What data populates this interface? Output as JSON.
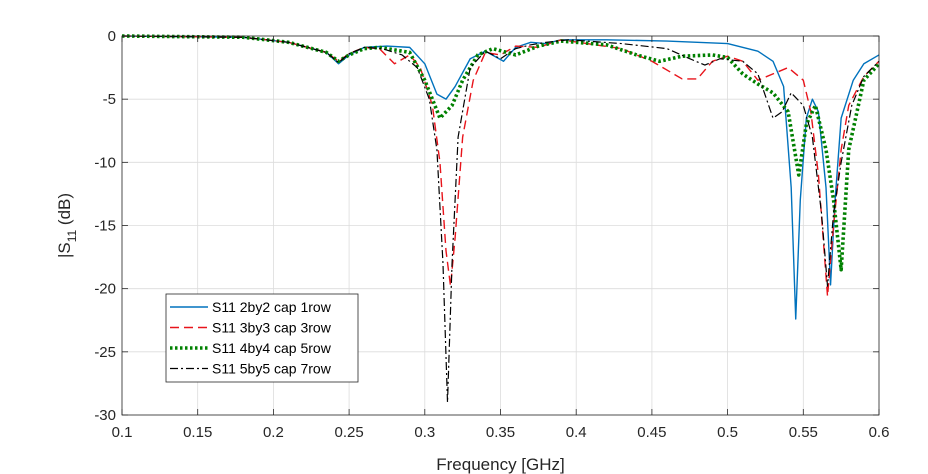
{
  "chart_data": {
    "type": "line",
    "xlabel": "Frequency [GHz]",
    "ylabel_main": "|S",
    "ylabel_sub": "11",
    "ylabel_unit": " (dB)",
    "xlim": [
      0.1,
      0.6
    ],
    "ylim": [
      -30,
      0
    ],
    "xticks": [
      0.1,
      0.15,
      0.2,
      0.25,
      0.3,
      0.35,
      0.4,
      0.45,
      0.5,
      0.55,
      0.6
    ],
    "xtick_labels": [
      "0.1",
      "0.15",
      "0.2",
      "0.25",
      "0.3",
      "0.35",
      "0.4",
      "0.45",
      "0.5",
      "0.55",
      "0.6"
    ],
    "yticks": [
      0,
      -5,
      -10,
      -15,
      -20,
      -25,
      -30
    ],
    "ytick_labels": [
      "0",
      "-5",
      "-10",
      "-15",
      "-20",
      "-25",
      "-30"
    ],
    "grid": true,
    "legend_position": "lower-left",
    "series": [
      {
        "name": "S11 2by2 cap 1row",
        "color": "#0072BD",
        "style": "solid",
        "points": [
          [
            0.1,
            0
          ],
          [
            0.18,
            -0.1
          ],
          [
            0.21,
            -0.5
          ],
          [
            0.235,
            -1.3
          ],
          [
            0.243,
            -2.2
          ],
          [
            0.25,
            -1.5
          ],
          [
            0.26,
            -0.9
          ],
          [
            0.275,
            -0.8
          ],
          [
            0.29,
            -0.9
          ],
          [
            0.3,
            -2.2
          ],
          [
            0.308,
            -4.6
          ],
          [
            0.314,
            -5.0
          ],
          [
            0.32,
            -4.0
          ],
          [
            0.33,
            -1.8
          ],
          [
            0.34,
            -1.2
          ],
          [
            0.352,
            -2.0
          ],
          [
            0.36,
            -0.9
          ],
          [
            0.37,
            -0.5
          ],
          [
            0.38,
            -0.6
          ],
          [
            0.39,
            -0.3
          ],
          [
            0.42,
            -0.3
          ],
          [
            0.46,
            -0.4
          ],
          [
            0.5,
            -0.6
          ],
          [
            0.52,
            -1.2
          ],
          [
            0.53,
            -2.0
          ],
          [
            0.537,
            -4.0
          ],
          [
            0.542,
            -12
          ],
          [
            0.545,
            -22.4
          ],
          [
            0.548,
            -13
          ],
          [
            0.552,
            -6.5
          ],
          [
            0.556,
            -5.0
          ],
          [
            0.56,
            -6.0
          ],
          [
            0.565,
            -12
          ],
          [
            0.568,
            -19.7
          ],
          [
            0.571,
            -13
          ],
          [
            0.575,
            -6.5
          ],
          [
            0.583,
            -3.5
          ],
          [
            0.59,
            -2.2
          ],
          [
            0.6,
            -1.5
          ]
        ]
      },
      {
        "name": "S11 3by3 cap 3row",
        "color": "#D95319",
        "dash_color": "#E8141B",
        "style": "dashed",
        "points": [
          [
            0.1,
            0
          ],
          [
            0.18,
            -0.1
          ],
          [
            0.21,
            -0.5
          ],
          [
            0.235,
            -1.3
          ],
          [
            0.243,
            -2.0
          ],
          [
            0.25,
            -1.4
          ],
          [
            0.26,
            -0.9
          ],
          [
            0.27,
            -1.0
          ],
          [
            0.28,
            -2.2
          ],
          [
            0.29,
            -1.5
          ],
          [
            0.297,
            -2.5
          ],
          [
            0.305,
            -5.5
          ],
          [
            0.31,
            -10
          ],
          [
            0.314,
            -17
          ],
          [
            0.317,
            -19.8
          ],
          [
            0.32,
            -16
          ],
          [
            0.325,
            -8
          ],
          [
            0.332,
            -3.5
          ],
          [
            0.34,
            -1.3
          ],
          [
            0.35,
            -1.5
          ],
          [
            0.36,
            -0.8
          ],
          [
            0.375,
            -0.9
          ],
          [
            0.39,
            -0.3
          ],
          [
            0.43,
            -1.0
          ],
          [
            0.45,
            -2.0
          ],
          [
            0.47,
            -3.4
          ],
          [
            0.48,
            -3.4
          ],
          [
            0.49,
            -2.0
          ],
          [
            0.5,
            -1.6
          ],
          [
            0.51,
            -2.0
          ],
          [
            0.52,
            -3.5
          ],
          [
            0.53,
            -3.0
          ],
          [
            0.54,
            -2.5
          ],
          [
            0.55,
            -3.5
          ],
          [
            0.555,
            -6
          ],
          [
            0.56,
            -11
          ],
          [
            0.566,
            -20.6
          ],
          [
            0.57,
            -15
          ],
          [
            0.575,
            -9
          ],
          [
            0.58,
            -5.5
          ],
          [
            0.59,
            -3.2
          ],
          [
            0.6,
            -2.0
          ]
        ]
      },
      {
        "name": "S11 4by4 cap 5row",
        "color": "#008000",
        "style": "dotted",
        "points": [
          [
            0.1,
            0
          ],
          [
            0.18,
            -0.1
          ],
          [
            0.21,
            -0.5
          ],
          [
            0.235,
            -1.3
          ],
          [
            0.243,
            -2.0
          ],
          [
            0.25,
            -1.5
          ],
          [
            0.26,
            -1.0
          ],
          [
            0.27,
            -0.9
          ],
          [
            0.28,
            -1.1
          ],
          [
            0.29,
            -1.3
          ],
          [
            0.3,
            -3.5
          ],
          [
            0.31,
            -6.5
          ],
          [
            0.318,
            -5.5
          ],
          [
            0.325,
            -3.5
          ],
          [
            0.335,
            -1.5
          ],
          [
            0.345,
            -1.0
          ],
          [
            0.36,
            -1.5
          ],
          [
            0.375,
            -0.8
          ],
          [
            0.39,
            -0.4
          ],
          [
            0.42,
            -0.7
          ],
          [
            0.44,
            -1.5
          ],
          [
            0.455,
            -2.0
          ],
          [
            0.47,
            -1.6
          ],
          [
            0.49,
            -1.5
          ],
          [
            0.5,
            -1.7
          ],
          [
            0.51,
            -3.0
          ],
          [
            0.52,
            -3.8
          ],
          [
            0.53,
            -4.5
          ],
          [
            0.54,
            -6.0
          ],
          [
            0.547,
            -11
          ],
          [
            0.552,
            -7
          ],
          [
            0.558,
            -5.5
          ],
          [
            0.565,
            -9
          ],
          [
            0.57,
            -13
          ],
          [
            0.575,
            -18.5
          ],
          [
            0.58,
            -9
          ],
          [
            0.59,
            -3.5
          ],
          [
            0.6,
            -2.2
          ]
        ]
      },
      {
        "name": "S11 5by5 cap 7row",
        "color": "#000000",
        "style": "dashdot",
        "points": [
          [
            0.1,
            0
          ],
          [
            0.18,
            -0.1
          ],
          [
            0.21,
            -0.5
          ],
          [
            0.235,
            -1.3
          ],
          [
            0.243,
            -2.1
          ],
          [
            0.25,
            -1.4
          ],
          [
            0.26,
            -0.9
          ],
          [
            0.272,
            -1.0
          ],
          [
            0.285,
            -1.5
          ],
          [
            0.295,
            -2.5
          ],
          [
            0.303,
            -5.0
          ],
          [
            0.308,
            -9
          ],
          [
            0.312,
            -18
          ],
          [
            0.315,
            -29
          ],
          [
            0.318,
            -18
          ],
          [
            0.322,
            -8
          ],
          [
            0.33,
            -2.5
          ],
          [
            0.34,
            -1.2
          ],
          [
            0.35,
            -1.8
          ],
          [
            0.36,
            -1.0
          ],
          [
            0.37,
            -0.7
          ],
          [
            0.38,
            -0.5
          ],
          [
            0.395,
            -0.3
          ],
          [
            0.43,
            -0.6
          ],
          [
            0.46,
            -1.0
          ],
          [
            0.475,
            -1.8
          ],
          [
            0.485,
            -2.3
          ],
          [
            0.495,
            -1.8
          ],
          [
            0.51,
            -2.0
          ],
          [
            0.52,
            -3.0
          ],
          [
            0.53,
            -6.5
          ],
          [
            0.536,
            -6.0
          ],
          [
            0.542,
            -4.5
          ],
          [
            0.55,
            -5.5
          ],
          [
            0.556,
            -8
          ],
          [
            0.562,
            -14
          ],
          [
            0.566,
            -19.8
          ],
          [
            0.57,
            -14
          ],
          [
            0.575,
            -10
          ],
          [
            0.582,
            -5.5
          ],
          [
            0.59,
            -3.2
          ],
          [
            0.6,
            -2.0
          ]
        ]
      }
    ]
  }
}
